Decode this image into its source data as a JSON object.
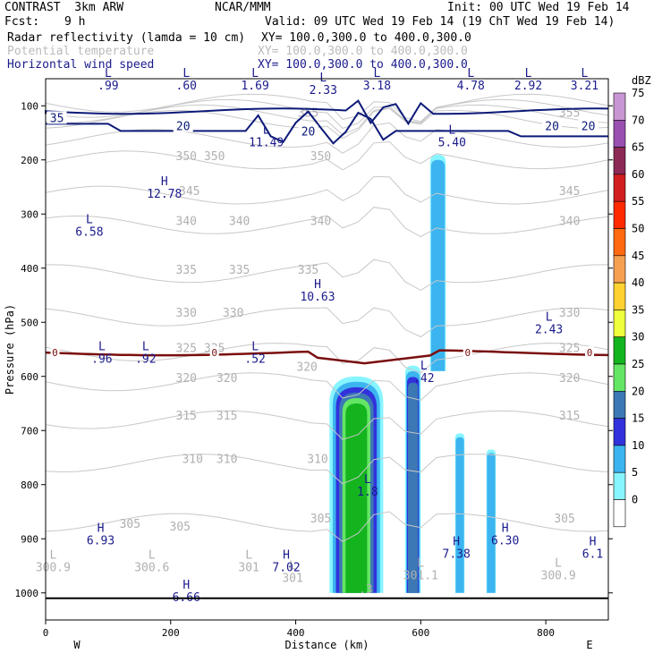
{
  "header": {
    "model": "CONTRAST  3km ARW",
    "center": "NCAR/MMM",
    "init": "Init: 00 UTC Wed 19 Feb 14",
    "fcst_label": "Fcst:",
    "fcst_value": "9 h",
    "valid": "Valid: 09 UTC Wed 19 Feb 14 (19 ChT Wed 19 Feb 14)",
    "fields": [
      {
        "name": "Radar reflectivity (lamda = 10 cm)",
        "xy": "XY= 100.0,300.0 to 400.0,300.0"
      },
      {
        "name": "Potential temperature",
        "xy": "XY= 100.0,300.0 to 400.0,300.0"
      },
      {
        "name": "Horizontal wind speed",
        "xy": "XY= 100.0,300.0 to 400.0,300.0"
      }
    ]
  },
  "chart_data": {
    "type": "cross-section",
    "xlabel": "Distance (km)",
    "ylabel": "Pressure (hPa)",
    "xlim": [
      0,
      900
    ],
    "ylim": [
      1050,
      50
    ],
    "xticks": [
      0,
      200,
      400,
      600,
      800
    ],
    "yticks": [
      100,
      200,
      300,
      400,
      500,
      600,
      700,
      800,
      900,
      1000
    ],
    "x_ends": {
      "left": "W",
      "right": "E"
    },
    "colorbar": {
      "unit": "dBZ",
      "levels": [
        "75",
        "70",
        "65",
        "60",
        "55",
        "50",
        "45",
        "40",
        "35",
        "30",
        "25",
        "20",
        "15",
        "10",
        "5",
        "0"
      ],
      "colors": [
        "#c896d2",
        "#9a50b0",
        "#8c2a55",
        "#d21e1e",
        "#ff2a00",
        "#ff6a10",
        "#f5a050",
        "#ffd232",
        "#f0ff3c",
        "#14b41e",
        "#64e664",
        "#3c78b4",
        "#3232dc",
        "#3cb4f0",
        "#87f5ff",
        "#ffffff"
      ]
    },
    "reflectivity_cells": [
      {
        "x": [
          454,
          480,
          510,
          540
        ],
        "p": [
          600,
          1000
        ],
        "levels": [
          5,
          10,
          15,
          20,
          25,
          30
        ]
      },
      {
        "x": [
          575,
          600
        ],
        "p": [
          580,
          1000
        ],
        "levels": [
          5,
          10,
          15,
          20
        ]
      },
      {
        "x": [
          615,
          640
        ],
        "p": [
          190,
          590
        ],
        "levels": [
          5,
          10
        ]
      },
      {
        "x": [
          655,
          670
        ],
        "p": [
          705,
          1000
        ],
        "levels": [
          5,
          10
        ]
      },
      {
        "x": [
          705,
          720
        ],
        "p": [
          735,
          1000
        ],
        "levels": [
          5,
          10
        ]
      }
    ],
    "theta_labels": [
      {
        "text": "355",
        "x": 420,
        "p": 120
      },
      {
        "text": "355",
        "x": 838,
        "p": 120
      },
      {
        "text": "350",
        "x": 225,
        "p": 200
      },
      {
        "text": "350",
        "x": 270,
        "p": 200
      },
      {
        "text": "350",
        "x": 440,
        "p": 200
      },
      {
        "text": "345",
        "x": 230,
        "p": 265
      },
      {
        "text": "345",
        "x": 838,
        "p": 265
      },
      {
        "text": "340",
        "x": 225,
        "p": 320
      },
      {
        "text": "340",
        "x": 310,
        "p": 320
      },
      {
        "text": "340",
        "x": 440,
        "p": 320
      },
      {
        "text": "340",
        "x": 838,
        "p": 320
      },
      {
        "text": "335",
        "x": 225,
        "p": 410
      },
      {
        "text": "335",
        "x": 310,
        "p": 410
      },
      {
        "text": "335",
        "x": 420,
        "p": 410
      },
      {
        "text": "330",
        "x": 225,
        "p": 490
      },
      {
        "text": "330",
        "x": 300,
        "p": 490
      },
      {
        "text": "330",
        "x": 838,
        "p": 490
      },
      {
        "text": "325",
        "x": 225,
        "p": 555
      },
      {
        "text": "325",
        "x": 270,
        "p": 555
      },
      {
        "text": "325",
        "x": 838,
        "p": 555
      },
      {
        "text": "320",
        "x": 225,
        "p": 610
      },
      {
        "text": "320",
        "x": 290,
        "p": 610
      },
      {
        "text": "320",
        "x": 418,
        "p": 590
      },
      {
        "text": "320",
        "x": 838,
        "p": 610
      },
      {
        "text": "315",
        "x": 225,
        "p": 680
      },
      {
        "text": "315",
        "x": 290,
        "p": 680
      },
      {
        "text": "315",
        "x": 838,
        "p": 680
      },
      {
        "text": "310",
        "x": 235,
        "p": 760
      },
      {
        "text": "310",
        "x": 290,
        "p": 760
      },
      {
        "text": "310",
        "x": 435,
        "p": 760
      },
      {
        "text": "305",
        "x": 135,
        "p": 880
      },
      {
        "text": "305",
        "x": 215,
        "p": 885
      },
      {
        "text": "305",
        "x": 440,
        "p": 870
      },
      {
        "text": "305",
        "x": 830,
        "p": 870
      }
    ],
    "wind_isotachs": [
      {
        "text": "35",
        "x": 18,
        "p": 130
      },
      {
        "text": "20",
        "x": 220,
        "p": 145
      },
      {
        "text": "20",
        "x": 420,
        "p": 155
      },
      {
        "text": "20",
        "x": 810,
        "p": 145
      },
      {
        "text": "20",
        "x": 868,
        "p": 145
      }
    ],
    "zero_isotherm": {
      "value": "0",
      "p": 556,
      "marks": [
        {
          "text": "0",
          "x": 15
        },
        {
          "text": "0",
          "x": 270
        },
        {
          "text": "0",
          "x": 675
        },
        {
          "text": "0",
          "x": 870
        }
      ]
    },
    "extrema_navy": [
      {
        "mark": "L",
        "value": ".99",
        "x": 100,
        "p": 70
      },
      {
        "mark": "L",
        "value": ".60",
        "x": 225,
        "p": 70
      },
      {
        "mark": "L",
        "value": "1.69",
        "x": 335,
        "p": 70
      },
      {
        "mark": "L",
        "value": "2.33",
        "x": 444,
        "p": 78
      },
      {
        "mark": "L",
        "value": "3.18",
        "x": 530,
        "p": 70
      },
      {
        "mark": "L",
        "value": "4.78",
        "x": 680,
        "p": 70
      },
      {
        "mark": "L",
        "value": "2.92",
        "x": 772,
        "p": 70
      },
      {
        "mark": "L",
        "value": "3.21",
        "x": 862,
        "p": 70
      },
      {
        "mark": "L",
        "value": "11.49",
        "x": 353,
        "p": 175
      },
      {
        "mark": "L",
        "value": "5.40",
        "x": 650,
        "p": 175
      },
      {
        "mark": "H",
        "value": "12.78",
        "x": 190,
        "p": 270
      },
      {
        "mark": "L",
        "value": "6.58",
        "x": 70,
        "p": 340
      },
      {
        "mark": "H",
        "value": "10.63",
        "x": 435,
        "p": 460
      },
      {
        "mark": "L",
        "value": "2.43",
        "x": 805,
        "p": 520
      },
      {
        "mark": "L",
        "value": ".96",
        "x": 90,
        "p": 575
      },
      {
        "mark": "L",
        "value": ".92",
        "x": 160,
        "p": 575
      },
      {
        "mark": "L",
        "value": ".52",
        "x": 335,
        "p": 575
      },
      {
        "mark": "L",
        "value": ".42",
        "x": 605,
        "p": 610
      },
      {
        "mark": "L",
        "value": "1.8",
        "x": 515,
        "p": 820
      },
      {
        "mark": "H",
        "value": "6.93",
        "x": 88,
        "p": 910
      },
      {
        "mark": "H",
        "value": "6.30",
        "x": 735,
        "p": 910
      },
      {
        "mark": "H",
        "value": "7.38",
        "x": 657,
        "p": 935
      },
      {
        "mark": "H",
        "value": "6.1",
        "x": 875,
        "p": 935
      },
      {
        "mark": "H",
        "value": "7.02",
        "x": 385,
        "p": 960
      },
      {
        "mark": "H",
        "value": "6.66",
        "x": 225,
        "p": 1015
      }
    ],
    "extrema_grey": [
      {
        "mark": "L",
        "value": "300.9",
        "x": 12,
        "p": 960
      },
      {
        "mark": "L",
        "value": "300.6",
        "x": 170,
        "p": 960
      },
      {
        "mark": "L",
        "value": "301",
        "x": 325,
        "p": 960
      },
      {
        "mark": "L",
        "value": "301",
        "x": 395,
        "p": 980
      },
      {
        "mark": "L",
        "value": "301.1",
        "x": 600,
        "p": 975
      },
      {
        "mark": "L",
        "value": "300.9",
        "x": 820,
        "p": 975
      },
      {
        "mark": "",
        "value": ".3",
        "x": 512,
        "p": 1000
      }
    ]
  }
}
